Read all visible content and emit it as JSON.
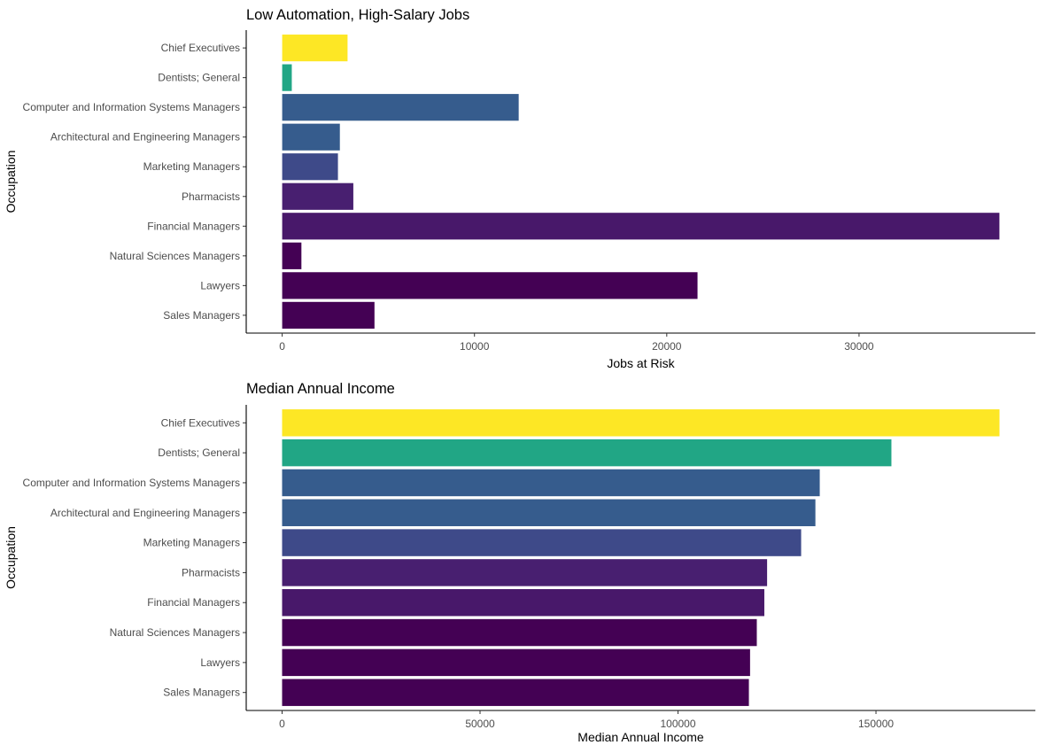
{
  "chart_data": [
    {
      "type": "bar",
      "orientation": "horizontal",
      "title": "Low Automation, High-Salary Jobs",
      "xlabel": "Jobs at Risk",
      "ylabel": "Occupation",
      "categories": [
        "Chief Executives",
        "Dentists; General",
        "Computer and Information Systems Managers",
        "Architectural and Engineering Managers",
        "Marketing Managers",
        "Pharmacists",
        "Financial Managers",
        "Natural Sciences Managers",
        "Lawyers",
        "Sales Managers"
      ],
      "values": [
        3400,
        500,
        12300,
        3000,
        2900,
        3700,
        37300,
        1000,
        21600,
        4800
      ],
      "colors": [
        "#fde725",
        "#21a685",
        "#365c8d",
        "#365c8d",
        "#3e4a89",
        "#481f70",
        "#48186a",
        "#440154",
        "#440154",
        "#440154"
      ],
      "xlim": [
        -1870,
        39170
      ],
      "xticks": [
        0,
        10000,
        20000,
        30000
      ],
      "xtick_labels": [
        "0",
        "10000",
        "20000",
        "30000"
      ],
      "grid": false
    },
    {
      "type": "bar",
      "orientation": "horizontal",
      "title": "Median Annual Income",
      "xlabel": "Median Annual Income",
      "ylabel": "Occupation",
      "categories": [
        "Chief Executives",
        "Dentists; General",
        "Computer and Information Systems Managers",
        "Architectural and Engineering Managers",
        "Marketing Managers",
        "Pharmacists",
        "Financial Managers",
        "Natural Sciences Managers",
        "Lawyers",
        "Sales Managers"
      ],
      "values": [
        181200,
        153900,
        135800,
        134700,
        131100,
        122500,
        121800,
        119900,
        118200,
        117900
      ],
      "colors": [
        "#fde725",
        "#21a685",
        "#365c8d",
        "#365c8d",
        "#3e4a89",
        "#481f70",
        "#48186a",
        "#440154",
        "#440154",
        "#440154"
      ],
      "xlim": [
        -9060,
        190260
      ],
      "xticks": [
        0,
        50000,
        100000,
        150000
      ],
      "xtick_labels": [
        "0",
        "50000",
        "100000",
        "150000"
      ],
      "grid": false
    }
  ]
}
